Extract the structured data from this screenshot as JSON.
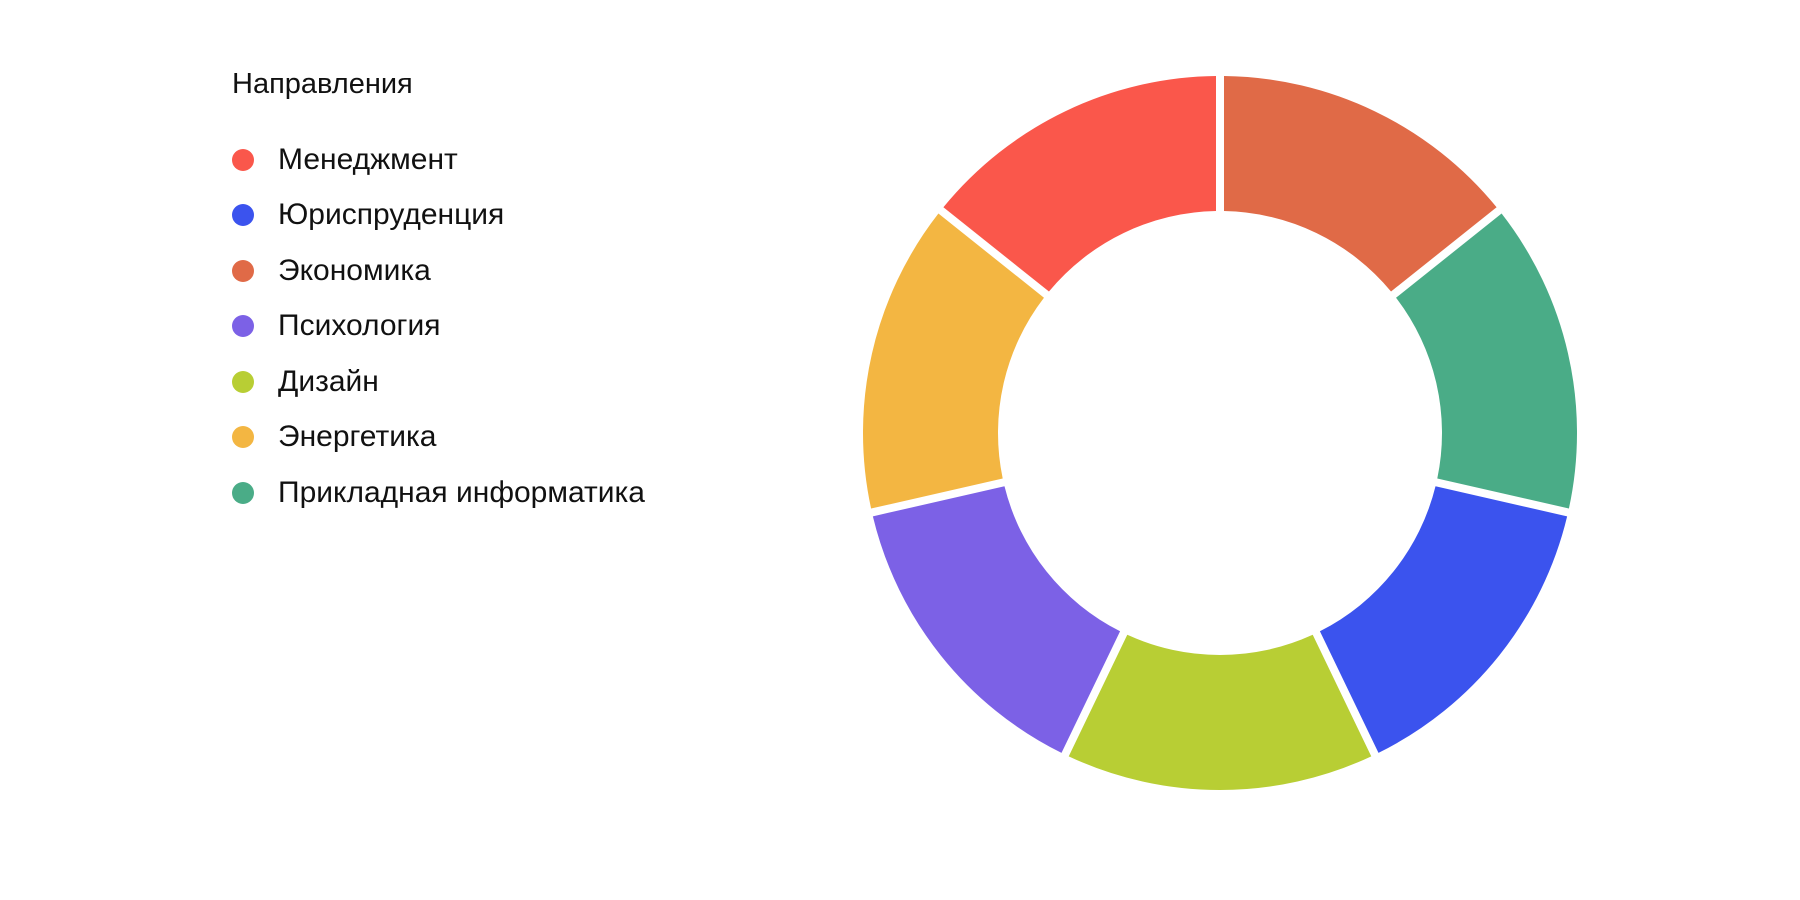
{
  "chart_data": {
    "type": "pie",
    "variant": "donut",
    "legend_title": "Направления",
    "legend_position": "left",
    "categories": [
      "Менеджмент",
      "Юриспруденция",
      "Экономика",
      "Психология",
      "Дизайн",
      "Энергетика",
      "Прикладная информатика"
    ],
    "colors": [
      "#FA574B",
      "#3B53EE",
      "#E06A47",
      "#7C61E6",
      "#B8CE34",
      "#F3B642",
      "#4AAC87"
    ],
    "values": [
      1,
      1,
      1,
      1,
      1,
      1,
      1
    ],
    "clockwise_order_from_top": [
      "Экономика",
      "Прикладная информатика",
      "Юриспруденция",
      "Дизайн",
      "Психология",
      "Энергетика",
      "Менеджмент"
    ]
  }
}
